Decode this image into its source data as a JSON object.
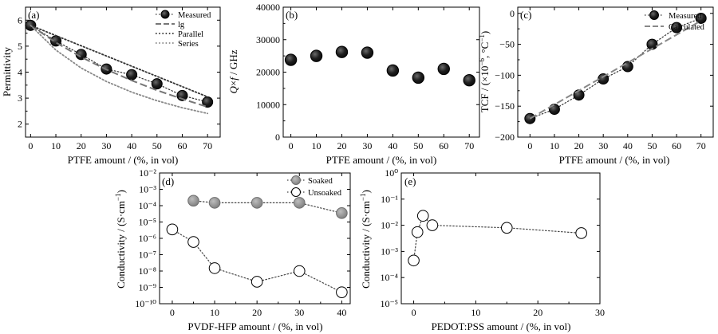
{
  "chart_data": [
    {
      "type": "line",
      "panel": "(a)",
      "xlabel": "PTFE amount / (%, in vol)",
      "ylabel": "Permittivity",
      "xlim": [
        -2,
        75
      ],
      "ylim": [
        1.5,
        6.5
      ],
      "xticks": [
        0,
        10,
        20,
        30,
        40,
        50,
        60,
        70
      ],
      "yticks": [
        2,
        3,
        4,
        5,
        6
      ],
      "legend_position": "top-right",
      "series": [
        {
          "name": "Measured",
          "style": "markers",
          "color": "#1a1a1a",
          "x": [
            0,
            10,
            20,
            30,
            40,
            50,
            60,
            70
          ],
          "y": [
            5.8,
            5.2,
            4.68,
            4.12,
            3.9,
            3.55,
            3.1,
            2.85
          ]
        },
        {
          "name": "lg",
          "style": "dash",
          "color": "#777777",
          "x": [
            0,
            10,
            20,
            30,
            40,
            50,
            60,
            70
          ],
          "y": [
            5.8,
            5.14,
            4.58,
            4.1,
            3.68,
            3.3,
            2.97,
            2.66
          ]
        },
        {
          "name": "Parallel",
          "style": "dot",
          "color": "#333333",
          "x": [
            0,
            70
          ],
          "y": [
            5.8,
            3.05
          ]
        },
        {
          "name": "Series",
          "style": "dot",
          "color": "#888888",
          "x": [
            0,
            10,
            20,
            30,
            40,
            50,
            60,
            70
          ],
          "y": [
            5.8,
            4.85,
            4.16,
            3.64,
            3.23,
            2.9,
            2.63,
            2.41
          ]
        }
      ]
    },
    {
      "type": "scatter",
      "panel": "(b)",
      "xlabel": "PTFE amount / (%, in vol)",
      "ylabel": "Q×f / GHz",
      "xlim": [
        -3,
        74
      ],
      "ylim": [
        0,
        40000
      ],
      "xticks": [
        0,
        10,
        20,
        30,
        40,
        50,
        60,
        70
      ],
      "yticks": [
        0,
        10000,
        20000,
        30000,
        40000
      ],
      "series": [
        {
          "name": "",
          "style": "markers",
          "color": "#1a1a1a",
          "x": [
            0,
            10,
            20,
            30,
            40,
            50,
            60,
            70
          ],
          "y": [
            23800,
            25000,
            26200,
            26000,
            20500,
            18300,
            21000,
            17500
          ]
        }
      ]
    },
    {
      "type": "line",
      "panel": "(c)",
      "xlabel": "PTFE amount / (%, in vol)",
      "ylabel": "TCF / (×10⁻⁶, °C⁻¹)",
      "xlim": [
        -5,
        75
      ],
      "ylim": [
        -200,
        10
      ],
      "xticks": [
        0,
        10,
        20,
        30,
        40,
        50,
        60,
        70
      ],
      "yticks": [
        -200,
        -150,
        -100,
        -50,
        0
      ],
      "legend_position": "top-right",
      "series": [
        {
          "name": "Measured",
          "style": "markers",
          "color": "#1a1a1a",
          "x": [
            0,
            10,
            20,
            30,
            40,
            50,
            60,
            70
          ],
          "y": [
            -170,
            -155,
            -132,
            -106,
            -86,
            -50,
            -23,
            -8
          ]
        },
        {
          "name": "Calculated",
          "style": "dash",
          "color": "#888888",
          "x": [
            0,
            70
          ],
          "y": [
            -170,
            -12
          ]
        }
      ]
    },
    {
      "type": "scatter",
      "panel": "(d)",
      "xlabel": "PVDF-HFP amount / (%, in vol)",
      "ylabel": "Conductivity / (S·cm⁻¹)",
      "yscale": "log",
      "xlim": [
        -3,
        42
      ],
      "ylim": [
        1e-10,
        0.01
      ],
      "xticks": [
        0,
        10,
        20,
        30,
        40
      ],
      "yticks": [
        1e-10,
        1e-09,
        1e-08,
        1e-07,
        1e-06,
        1e-05,
        0.0001,
        0.001,
        0.01
      ],
      "legend_position": "top-right",
      "series": [
        {
          "name": "Soaked",
          "style": "markers-filled",
          "color": "#8c8c8c",
          "x": [
            5,
            10,
            20,
            30,
            40
          ],
          "y": [
            0.0002,
            0.00015,
            0.00015,
            0.00015,
            3.5e-05
          ]
        },
        {
          "name": "Unsoaked",
          "style": "markers-open",
          "color": "#000000",
          "x": [
            0,
            5,
            10,
            20,
            30,
            40
          ],
          "y": [
            3.5e-06,
            6e-07,
            1.5e-08,
            2.2e-09,
            1e-08,
            5e-10
          ]
        }
      ]
    },
    {
      "type": "scatter",
      "panel": "(e)",
      "xlabel": "PEDOT:PSS amount / (%, in vol)",
      "ylabel": "Conductivity / (S·cm⁻¹)",
      "yscale": "log",
      "xlim": [
        -2,
        30
      ],
      "ylim": [
        1e-05,
        1
      ],
      "xticks": [
        0,
        10,
        20,
        30
      ],
      "yticks": [
        1e-05,
        0.0001,
        0.001,
        0.01,
        0.1,
        1
      ],
      "series": [
        {
          "name": "",
          "style": "markers-open",
          "color": "#000000",
          "x": [
            0,
            0.6,
            1.5,
            3,
            15,
            27
          ],
          "y": [
            0.00045,
            0.0055,
            0.023,
            0.01,
            0.008,
            0.005
          ]
        }
      ]
    }
  ],
  "labels": {
    "a_panel": "(a)",
    "a_xlabel": "PTFE amount / (%, in vol)",
    "a_ylabel": "Permittivity",
    "b_panel": "(b)",
    "b_xlabel": "PTFE amount / (%, in vol)",
    "c_panel": "(c)",
    "c_xlabel": "PTFE amount / (%, in vol)",
    "d_panel": "(d)",
    "d_xlabel": "PVDF-HFP amount / (%, in vol)",
    "e_panel": "(e)",
    "e_xlabel": "PEDOT:PSS amount / (%, in vol)"
  }
}
